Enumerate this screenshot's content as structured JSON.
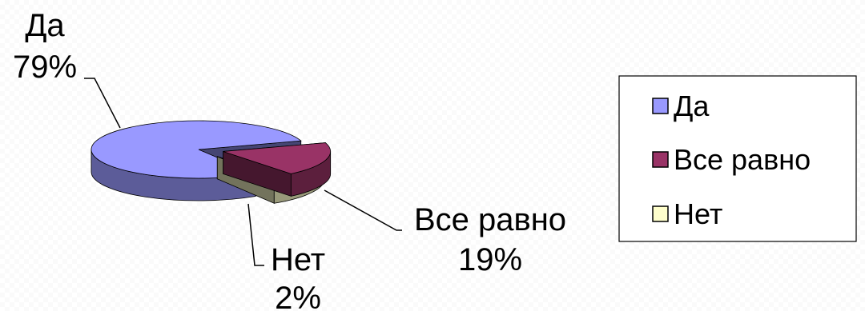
{
  "chart_data": {
    "type": "pie",
    "three_d": true,
    "categories": [
      "Да",
      "Все равно",
      "Нет"
    ],
    "values": [
      79,
      19,
      2
    ],
    "value_labels": [
      "79%",
      "19%",
      "2%"
    ],
    "colors": [
      "#9999FF",
      "#993366",
      "#FFFFCC"
    ],
    "legend": {
      "position": "right",
      "entries": [
        "Да",
        "Все равно",
        "Нет"
      ]
    },
    "title": ""
  }
}
